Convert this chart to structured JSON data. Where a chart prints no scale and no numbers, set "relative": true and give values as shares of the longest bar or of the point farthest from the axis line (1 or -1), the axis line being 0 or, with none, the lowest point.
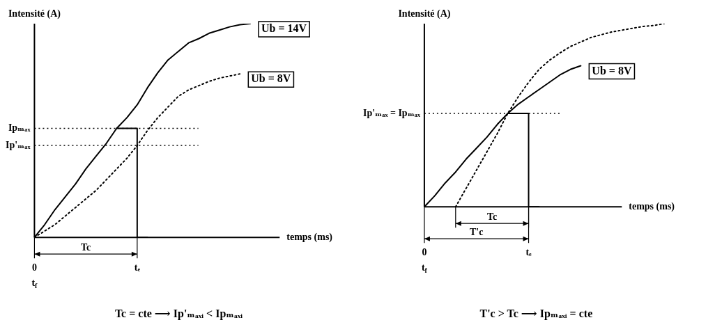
{
  "chart_data": [
    {
      "type": "line",
      "relative": true,
      "xlabel": "temps (ms)",
      "ylabel": "Intensité (A)",
      "categories": [
        "0",
        null,
        null,
        null,
        null,
        null,
        null,
        null,
        null,
        null,
        "tₑ",
        null,
        null,
        null,
        null,
        null,
        null,
        null,
        null,
        null,
        null,
        null,
        null,
        null,
        null,
        null,
        null,
        null,
        null,
        null
      ],
      "series": [
        {
          "name": "Ub = 14V",
          "color": "#000000",
          "values": [
            0,
            0.06,
            0.13,
            0.19,
            0.25,
            0.32,
            0.38,
            0.44,
            0.51,
            0.56,
            0.62,
            0.7,
            0.77,
            0.83,
            0.87,
            0.91,
            0.93,
            0.955,
            0.97,
            0.985,
            0.995,
            1,
            null,
            null,
            null,
            null,
            null,
            null,
            null,
            null
          ]
        },
        {
          "type": "step",
          "color": "#000000",
          "values": [
            null,
            null,
            null,
            null,
            null,
            null,
            null,
            null,
            0.51,
            0.51,
            0.51,
            0,
            null,
            null,
            null,
            null,
            null,
            null,
            null,
            null,
            null,
            null,
            null,
            null,
            null,
            null,
            null,
            null,
            null,
            null
          ]
        },
        {
          "name": "Ub = 8V",
          "color": "#000000",
          "line_style": "dotted",
          "values": [
            0,
            0.03,
            0.06,
            0.1,
            0.14,
            0.18,
            0.22,
            0.27,
            0.32,
            0.37,
            0.43,
            0.5,
            0.56,
            0.61,
            0.66,
            0.69,
            0.71,
            0.73,
            0.745,
            0.755,
            0.765,
            null,
            null,
            null,
            null,
            null,
            null,
            null,
            null,
            null
          ]
        }
      ],
      "ref_lines": [
        {
          "axis": "y",
          "value": 0.51,
          "label": "Ipₘₐₓ",
          "line_style": "dotted"
        },
        {
          "axis": "y",
          "value": 0.43,
          "label": "Ip'ₘₐₓ",
          "line_style": "dotted"
        }
      ],
      "annotations": [
        "Tc",
        "t$_{f}$",
        "Tc = cte ⟶ Ip'ₘₐₓᵢ < Ipₘₐₓᵢ"
      ]
    },
    {
      "type": "line",
      "relative": true,
      "xlabel": "temps (ms)",
      "ylabel": "Intensité (A)",
      "categories": [
        "0",
        null,
        null,
        null,
        null,
        null,
        null,
        null,
        null,
        null,
        "tₑ",
        null,
        null,
        null,
        null,
        null,
        null,
        null,
        null,
        null,
        null,
        null,
        null,
        null,
        null
      ],
      "series": [
        {
          "name": "Ub = 8V",
          "color": "#000000",
          "values": [
            0,
            0.06,
            0.13,
            0.19,
            0.26,
            0.32,
            0.38,
            0.45,
            0.51,
            0.56,
            0.6,
            0.64,
            0.68,
            0.72,
            0.75,
            0.77,
            null,
            null,
            null,
            null,
            null,
            null,
            null,
            null,
            null
          ]
        },
        {
          "type": "step",
          "color": "#000000",
          "values": [
            null,
            null,
            null,
            null,
            null,
            null,
            null,
            null,
            0.51,
            0.51,
            0.51,
            0,
            null,
            null,
            null,
            null,
            null,
            null,
            null,
            null,
            null,
            null,
            null,
            null,
            null
          ]
        },
        {
          "color": "#000000",
          "line_style": "dotted",
          "values": [
            null,
            null,
            null,
            0,
            0.1,
            0.2,
            0.3,
            0.4,
            0.51,
            0.6,
            0.68,
            0.75,
            0.8,
            0.84,
            0.875,
            0.9,
            0.925,
            0.94,
            0.955,
            0.965,
            0.975,
            0.985,
            0.99,
            1,
            null
          ]
        }
      ],
      "ref_lines": [
        {
          "axis": "y",
          "value": 0.51,
          "label": "Ip'ₘₐₓ = Ipₘₐₓ",
          "line_style": "dotted"
        }
      ],
      "annotations": [
        "Tc",
        "T'c",
        "t$_{f}$",
        "T'c > Tc ⟶ Ipₘₐₓᵢ = cte"
      ]
    }
  ]
}
